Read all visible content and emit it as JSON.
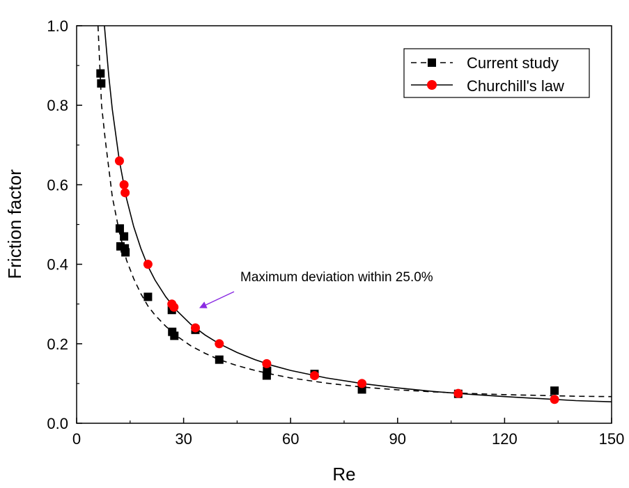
{
  "chart_data": {
    "type": "scatter",
    "title": "",
    "xlabel": "Re",
    "ylabel": "Friction factor",
    "xlim": [
      0,
      150
    ],
    "ylim": [
      0,
      1.0
    ],
    "xticks": [
      0,
      30,
      60,
      90,
      120,
      150
    ],
    "yticks": [
      0.0,
      0.2,
      0.4,
      0.6,
      0.8,
      1.0
    ],
    "x_tick_labels": [
      "0",
      "30",
      "60",
      "90",
      "120",
      "150"
    ],
    "y_tick_labels": [
      "0.0",
      "0.2",
      "0.4",
      "0.6",
      "0.8",
      "1.0"
    ],
    "grid": false,
    "legend_position": "top-right",
    "series": [
      {
        "name": "Current study",
        "marker": "square",
        "line_style": "dashed",
        "color": "#000000",
        "points": [
          [
            6.7,
            0.88
          ],
          [
            6.9,
            0.855
          ],
          [
            12.1,
            0.49
          ],
          [
            12.3,
            0.445
          ],
          [
            13.3,
            0.47
          ],
          [
            13.5,
            0.44
          ],
          [
            13.7,
            0.43
          ],
          [
            20.0,
            0.318
          ],
          [
            26.7,
            0.285
          ],
          [
            26.8,
            0.23
          ],
          [
            27.4,
            0.22
          ],
          [
            33.3,
            0.235
          ],
          [
            40.0,
            0.16
          ],
          [
            53.3,
            0.12
          ],
          [
            53.4,
            0.132
          ],
          [
            66.7,
            0.124
          ],
          [
            80.0,
            0.085
          ],
          [
            107.0,
            0.074
          ],
          [
            134.0,
            0.082
          ]
        ],
        "fit_curve": [
          [
            6.0,
            1.0
          ],
          [
            7.0,
            0.8
          ],
          [
            8.0,
            0.715
          ],
          [
            10.0,
            0.57
          ],
          [
            12.0,
            0.48
          ],
          [
            14.0,
            0.41
          ],
          [
            16.0,
            0.364
          ],
          [
            18.0,
            0.326
          ],
          [
            20.0,
            0.295
          ],
          [
            22.0,
            0.272
          ],
          [
            25.0,
            0.244
          ],
          [
            28.0,
            0.22
          ],
          [
            32.0,
            0.195
          ],
          [
            36.0,
            0.176
          ],
          [
            40.0,
            0.16
          ],
          [
            45.0,
            0.145
          ],
          [
            50.0,
            0.133
          ],
          [
            55.0,
            0.123
          ],
          [
            60.0,
            0.114
          ],
          [
            70.0,
            0.101
          ],
          [
            80.0,
            0.091
          ],
          [
            90.0,
            0.084
          ],
          [
            100.0,
            0.079
          ],
          [
            110.0,
            0.075
          ],
          [
            120.0,
            0.072
          ],
          [
            130.0,
            0.07
          ],
          [
            140.0,
            0.068
          ],
          [
            150.0,
            0.067
          ]
        ]
      },
      {
        "name": "Churchill's law",
        "marker": "circle",
        "line_style": "solid",
        "color": "#ff0000",
        "line_color": "#000000",
        "points": [
          [
            12.0,
            0.66
          ],
          [
            13.3,
            0.6
          ],
          [
            13.6,
            0.58
          ],
          [
            20.0,
            0.4
          ],
          [
            26.7,
            0.3
          ],
          [
            27.3,
            0.292
          ],
          [
            33.3,
            0.24
          ],
          [
            40.0,
            0.2
          ],
          [
            53.3,
            0.15
          ],
          [
            66.7,
            0.12
          ],
          [
            80.0,
            0.1
          ],
          [
            107.0,
            0.075
          ],
          [
            134.0,
            0.06
          ]
        ],
        "fit_curve": [
          [
            7.8,
            1.0
          ],
          [
            9.0,
            0.875
          ],
          [
            10.0,
            0.79
          ],
          [
            12.0,
            0.66
          ],
          [
            14.0,
            0.565
          ],
          [
            16.0,
            0.495
          ],
          [
            18.0,
            0.44
          ],
          [
            20.0,
            0.395
          ],
          [
            22.0,
            0.36
          ],
          [
            25.0,
            0.318
          ],
          [
            28.0,
            0.284
          ],
          [
            32.0,
            0.249
          ],
          [
            36.0,
            0.222
          ],
          [
            40.0,
            0.2
          ],
          [
            45.0,
            0.178
          ],
          [
            50.0,
            0.16
          ],
          [
            55.0,
            0.145
          ],
          [
            60.0,
            0.133
          ],
          [
            70.0,
            0.114
          ],
          [
            80.0,
            0.1
          ],
          [
            90.0,
            0.089
          ],
          [
            100.0,
            0.08
          ],
          [
            110.0,
            0.073
          ],
          [
            120.0,
            0.067
          ],
          [
            130.0,
            0.062
          ],
          [
            140.0,
            0.057
          ],
          [
            150.0,
            0.054
          ]
        ]
      }
    ],
    "annotations": [
      {
        "text": "Maximum deviation within 25.0%",
        "arrow_color": "#8a2be2",
        "arrow_target": [
          34.0,
          0.29
        ]
      }
    ]
  }
}
